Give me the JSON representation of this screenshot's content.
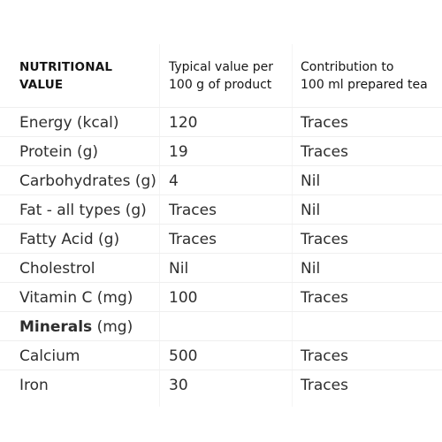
{
  "header": {
    "col1": "NUTRITIONAL\nVALUE",
    "col2": "Typical value per\n100 g of product",
    "col3": "Contribution to\n100 ml prepared tea"
  },
  "rows": [
    {
      "nutrient": "Energy (kcal)",
      "per100g": "120",
      "per100ml": "Traces"
    },
    {
      "nutrient": "Protein (g)",
      "per100g": "19",
      "per100ml": "Traces"
    },
    {
      "nutrient": "Carbohydrates (g)",
      "per100g": "4",
      "per100ml": "Nil"
    },
    {
      "nutrient": "Fat - all types (g)",
      "per100g": "Traces",
      "per100ml": "Nil"
    },
    {
      "nutrient": "Fatty Acid (g)",
      "per100g": "Traces",
      "per100ml": "Traces"
    },
    {
      "nutrient": "Cholestrol",
      "per100g": "Nil",
      "per100ml": "Nil"
    },
    {
      "nutrient": "Vitamin C (mg)",
      "per100g": "100",
      "per100ml": "Traces"
    }
  ],
  "section": {
    "label": "Minerals",
    "unit": " (mg)"
  },
  "mineral_rows": [
    {
      "nutrient": "Calcium",
      "per100g": "500",
      "per100ml": "Traces"
    },
    {
      "nutrient": "Iron",
      "per100g": "30",
      "per100ml": "Traces"
    }
  ]
}
